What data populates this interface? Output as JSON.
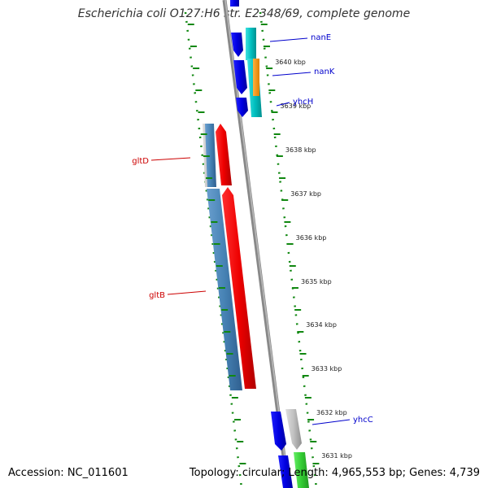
{
  "title": "Escherichia coli O127:H6 str. E2348/69, complete genome",
  "footer": {
    "accession": "Accession: NC_011601",
    "summary": "Topology: circular; Length: 4,965,553 bp; Genes: 4,739"
  },
  "map": {
    "ticks": [
      "3640 kbp",
      "3639 kbp",
      "3638 kbp",
      "3637 kbp",
      "3636 kbp",
      "3635 kbp",
      "3634 kbp",
      "3633 kbp",
      "3632 kbp",
      "3631 kbp"
    ],
    "genes": [
      {
        "name": "nanE",
        "color": "#0000cc"
      },
      {
        "name": "nanK",
        "color": "#0000cc"
      },
      {
        "name": "yhcH",
        "color": "#0000cc"
      },
      {
        "name": "gltD",
        "color": "#cc0000"
      },
      {
        "name": "gltB",
        "color": "#cc0000"
      },
      {
        "name": "yhcC",
        "color": "#0000cc"
      }
    ]
  },
  "colors": {
    "forward_cds": "#0000ee",
    "reverse_cds": "#ee0000",
    "forward_gene": "#00bfbf",
    "reverse_gene": "#4682b4",
    "rna_feature": "#ff9900",
    "grey_feature": "#bdbdbd",
    "green_feature": "#33cc33",
    "backbone": "#888888",
    "ruler": "#118811"
  }
}
